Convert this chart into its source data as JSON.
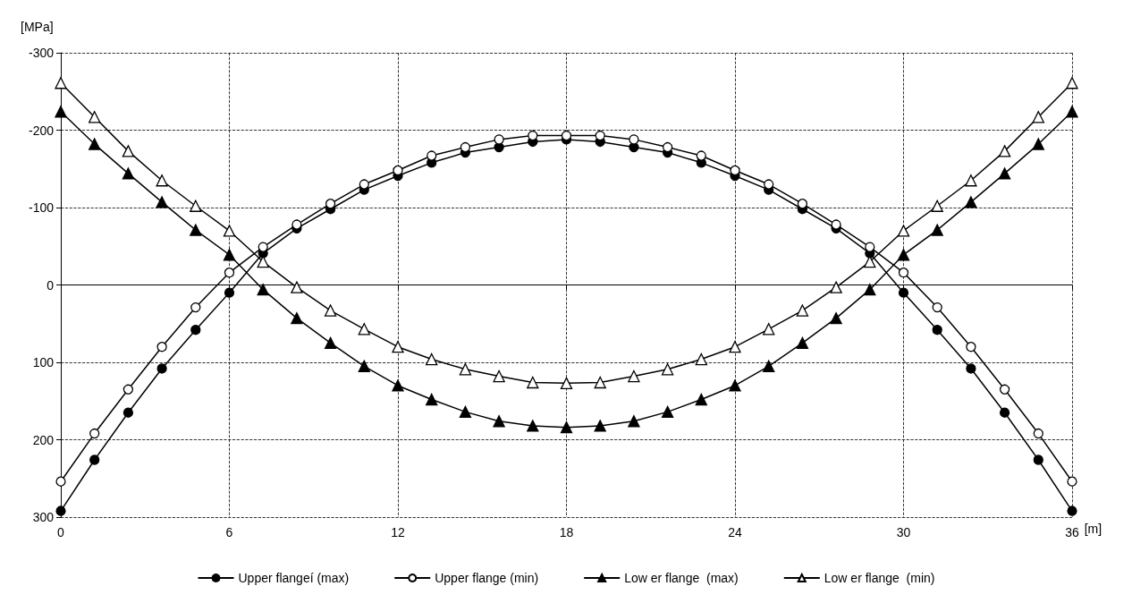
{
  "chart_data": {
    "type": "line",
    "xlabel": "[m]",
    "ylabel": "[MPa]",
    "x": [
      0,
      1.2,
      2.4,
      3.6,
      4.8,
      6,
      7.2,
      8.4,
      9.6,
      10.8,
      12,
      13.2,
      14.4,
      15.6,
      16.8,
      18,
      19.2,
      20.4,
      21.6,
      22.8,
      24,
      25.2,
      26.4,
      27.6,
      28.8,
      30,
      31.2,
      32.4,
      33.6,
      34.8,
      36
    ],
    "xlim": [
      0,
      36
    ],
    "xticks": [
      0,
      6,
      12,
      18,
      24,
      30,
      36
    ],
    "ylim": [
      300,
      -300
    ],
    "yticks": [
      -300,
      -200,
      -100,
      0,
      100,
      200,
      300
    ],
    "grid": true,
    "legend": "bottom",
    "line_style": "solid",
    "series": [
      {
        "name": "Upper flangeí (max)",
        "color": "#000000",
        "marker": "circle",
        "values": [
          292,
          226,
          165,
          108,
          58,
          10,
          -41,
          -73,
          -98,
          -123,
          -141,
          -158,
          -171,
          -178,
          -185,
          -188,
          -185,
          -178,
          -171,
          -158,
          -141,
          -123,
          -98,
          -73,
          -41,
          10,
          58,
          108,
          165,
          226,
          292
        ]
      },
      {
        "name": "Upper flange (min)",
        "color": "#000000",
        "marker": "circle",
        "colors": [
          "#ffffff",
          "#ffffff",
          "#ffffff",
          "#ffffff",
          "#ffffff",
          "#ffffff",
          "#ffffff",
          "#ffffff",
          "#ffffff",
          "#ffffff",
          "#ffffff",
          "#ffffff",
          "#ffffff",
          "#ffffff",
          "#ffffff",
          "#ffffff",
          "#ffffff",
          "#ffffff",
          "#ffffff",
          "#ffffff",
          "#ffffff",
          "#ffffff",
          "#ffffff",
          "#ffffff",
          "#ffffff",
          "#ffffff",
          "#ffffff",
          "#ffffff",
          "#ffffff",
          "#ffffff",
          "#ffffff"
        ],
        "values": [
          254,
          192,
          135,
          80,
          29,
          -16,
          -49,
          -78,
          -105,
          -130,
          -148,
          -167,
          -178,
          -188,
          -193,
          -193,
          -193,
          -188,
          -178,
          -167,
          -148,
          -130,
          -105,
          -78,
          -49,
          -16,
          29,
          80,
          135,
          192,
          254
        ]
      },
      {
        "name": "Low er flange  (max)",
        "color": "#000000",
        "marker": "triangle",
        "values": [
          -224,
          -182,
          -144,
          -107,
          -71,
          -39,
          6,
          43,
          75,
          105,
          130,
          148,
          164,
          176,
          182,
          184,
          182,
          176,
          164,
          148,
          130,
          105,
          75,
          43,
          6,
          -39,
          -71,
          -107,
          -144,
          -182,
          -224
        ]
      },
      {
        "name": "Low er flange  (min)",
        "color": "#000000",
        "marker": "triangle",
        "colors": [
          "#ffffff",
          "#ffffff",
          "#ffffff",
          "#ffffff",
          "#ffffff",
          "#ffffff",
          "#ffffff",
          "#ffffff",
          "#ffffff",
          "#ffffff",
          "#ffffff",
          "#ffffff",
          "#ffffff",
          "#ffffff",
          "#ffffff",
          "#ffffff",
          "#ffffff",
          "#ffffff",
          "#ffffff",
          "#ffffff",
          "#ffffff",
          "#ffffff",
          "#ffffff",
          "#ffffff",
          "#ffffff",
          "#ffffff",
          "#ffffff",
          "#ffffff",
          "#ffffff",
          "#ffffff",
          "#ffffff"
        ],
        "values": [
          -261,
          -217,
          -173,
          -135,
          -102,
          -70,
          -30,
          3,
          33,
          57,
          80,
          96,
          109,
          118,
          126,
          127,
          126,
          118,
          109,
          96,
          80,
          57,
          33,
          3,
          -30,
          -70,
          -102,
          -135,
          -173,
          -217,
          -261
        ]
      }
    ]
  }
}
